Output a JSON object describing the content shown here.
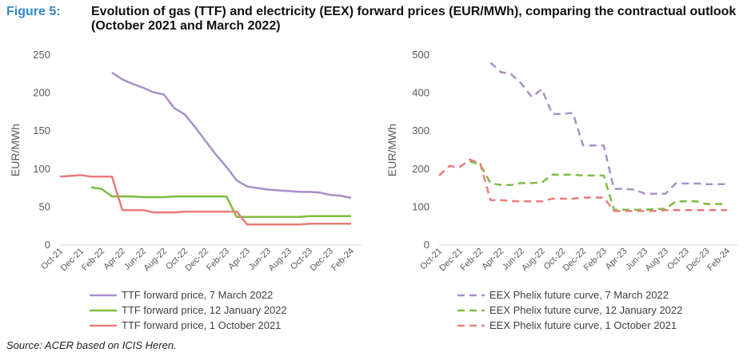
{
  "figure": {
    "label": "Figure 5:",
    "title": "Evolution of gas (TTF) and electricity (EEX) forward prices (EUR/MWh), comparing the contractual outlook (October 2021 and March 2022)"
  },
  "source": "Source: ACER based on ICIS Heren.",
  "chart_data": [
    {
      "type": "line",
      "xlabel": "",
      "ylabel": "EUR/MWh",
      "ylim": [
        0,
        250
      ],
      "yticks": [
        0,
        50,
        100,
        150,
        200,
        250
      ],
      "x": [
        "Oct-21",
        "Nov-21",
        "Dec-21",
        "Jan-22",
        "Feb-22",
        "Mar-22",
        "Apr-22",
        "May-22",
        "Jun-22",
        "Jul-22",
        "Aug-22",
        "Sep-22",
        "Oct-22",
        "Nov-22",
        "Dec-22",
        "Jan-23",
        "Feb-23",
        "Mar-23",
        "Apr-23",
        "May-23",
        "Jun-23",
        "Jul-23",
        "Aug-23",
        "Sep-23",
        "Oct-23",
        "Nov-23",
        "Dec-23",
        "Jan-24",
        "Feb-24",
        "Mar-24"
      ],
      "x_tick_labels": [
        "Oct-21",
        "Dec-21",
        "Feb-22",
        "Apr-22",
        "Jun-22",
        "Aug-22",
        "Oct-22",
        "Dec-22",
        "Feb-23",
        "Apr-23",
        "Jun-23",
        "Aug-23",
        "Oct-23",
        "Dec-23",
        "Feb-24"
      ],
      "grid": false,
      "legend_position": "bottom",
      "series": [
        {
          "name": "TTF forward price, 7 March 2022",
          "color": "#a98fc9",
          "dash": "solid",
          "values": [
            null,
            null,
            null,
            null,
            null,
            227,
            218,
            212,
            207,
            201,
            198,
            180,
            172,
            155,
            137,
            119,
            103,
            85,
            77,
            75,
            73,
            72,
            71,
            70,
            70,
            69,
            66,
            65,
            62,
            null
          ]
        },
        {
          "name": "TTF forward price, 12 January 2022",
          "color": "#7dbc42",
          "dash": "solid",
          "values": [
            null,
            null,
            null,
            76,
            74,
            64,
            64,
            64,
            63,
            63,
            63,
            64,
            64,
            64,
            64,
            64,
            64,
            37,
            37,
            37,
            37,
            37,
            37,
            37,
            38,
            38,
            38,
            38,
            38,
            null
          ]
        },
        {
          "name": "TTF forward price, 1 October 2021",
          "color": "#ec7b7b",
          "dash": "solid",
          "values": [
            90,
            91,
            92,
            90,
            90,
            90,
            46,
            46,
            46,
            43,
            43,
            43,
            44,
            44,
            44,
            44,
            44,
            44,
            27,
            27,
            27,
            27,
            27,
            27,
            28,
            28,
            28,
            28,
            28,
            null
          ]
        }
      ]
    },
    {
      "type": "line",
      "xlabel": "",
      "ylabel": "EUR/MWh",
      "ylim": [
        0,
        500
      ],
      "yticks": [
        0,
        100,
        200,
        300,
        400,
        500
      ],
      "x": [
        "Oct-21",
        "Nov-21",
        "Dec-21",
        "Jan-22",
        "Feb-22",
        "Mar-22",
        "Apr-22",
        "May-22",
        "Jun-22",
        "Jul-22",
        "Aug-22",
        "Sep-22",
        "Oct-22",
        "Nov-22",
        "Dec-22",
        "Jan-23",
        "Feb-23",
        "Mar-23",
        "Apr-23",
        "May-23",
        "Jun-23",
        "Jul-23",
        "Aug-23",
        "Sep-23",
        "Oct-23",
        "Nov-23",
        "Dec-23",
        "Jan-24",
        "Feb-24",
        "Mar-24"
      ],
      "x_tick_labels": [
        "Oct-21",
        "Dec-21",
        "Feb-22",
        "Apr-22",
        "Jun-22",
        "Aug-22",
        "Oct-22",
        "Dec-22",
        "Feb-23",
        "Apr-23",
        "Jun-23",
        "Aug-23",
        "Oct-23",
        "Dec-23",
        "Feb-24"
      ],
      "grid": false,
      "legend_position": "bottom",
      "series": [
        {
          "name": "EEX Phelix future curve, 7 March 2022",
          "color": "#a98fc9",
          "dash": "dashed",
          "values": [
            null,
            null,
            null,
            null,
            null,
            480,
            455,
            450,
            425,
            390,
            410,
            345,
            345,
            348,
            262,
            262,
            262,
            148,
            148,
            146,
            135,
            135,
            135,
            162,
            162,
            162,
            160,
            160,
            160,
            null
          ]
        },
        {
          "name": "EEX Phelix future curve, 12 January 2022",
          "color": "#7dbc42",
          "dash": "dashed",
          "values": [
            null,
            null,
            null,
            220,
            212,
            163,
            158,
            158,
            163,
            163,
            165,
            185,
            185,
            185,
            183,
            183,
            183,
            93,
            93,
            93,
            93,
            95,
            95,
            115,
            115,
            115,
            108,
            108,
            108,
            null
          ]
        },
        {
          "name": "EEX Phelix future curve, 1 October 2021",
          "color": "#ec7b7b",
          "dash": "dashed",
          "values": [
            183,
            208,
            205,
            225,
            215,
            118,
            118,
            116,
            115,
            115,
            115,
            122,
            122,
            122,
            125,
            125,
            125,
            90,
            90,
            90,
            90,
            90,
            92,
            92,
            92,
            92,
            92,
            92,
            92,
            null
          ]
        }
      ]
    }
  ]
}
